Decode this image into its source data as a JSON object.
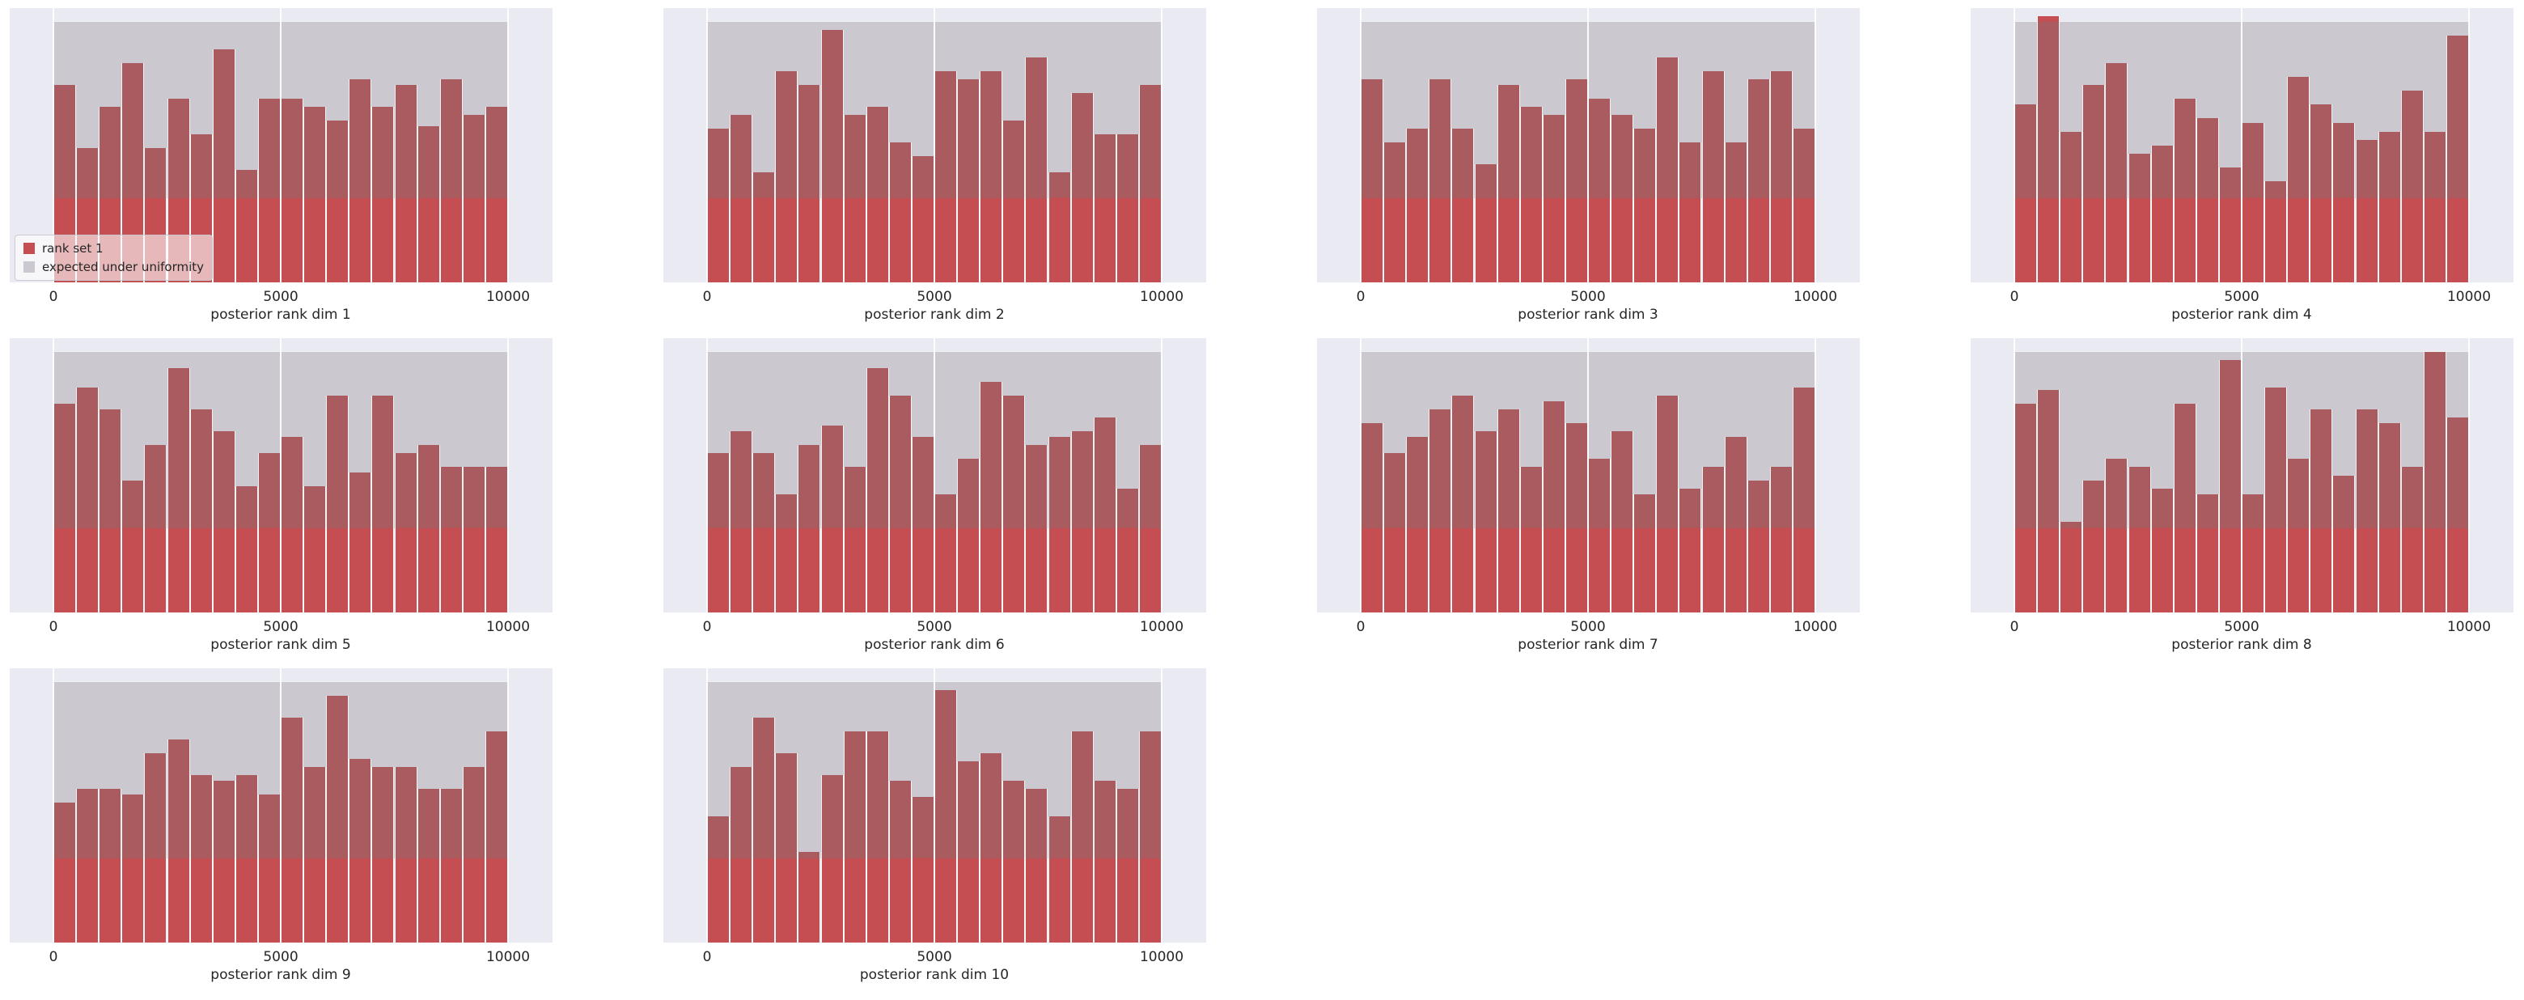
{
  "figure": {
    "description": "Grid of SBC posterior rank histograms with uniformity band",
    "grid": {
      "rows": 3,
      "cols": 4,
      "n_plots": 10
    }
  },
  "colors": {
    "bar_red": "#c44e52",
    "bar_red_muted": "#a95b5f",
    "band_gray": "#cbc9cf",
    "axes_bg": "#eaeaf2",
    "figure_bg": "#ffffff",
    "text": "#262626"
  },
  "legend": {
    "entries": [
      {
        "label": "rank set 1",
        "color": "#c44e52"
      },
      {
        "label": "expected under uniformity",
        "color": "#cbc9cf"
      }
    ]
  },
  "chart_data": {
    "type": "bar",
    "subtype": "sbc-rank-histogram-grid",
    "n_bins": 20,
    "x_range": [
      0,
      10000
    ],
    "x_ticks": [
      "0",
      "5000",
      "10000"
    ],
    "ylabel": "",
    "grid_on": true,
    "legend_position": "lower-left of first subplot",
    "series_label": "rank set 1",
    "uniformity_band": {
      "label": "expected under uniformity",
      "lower_pct": 30.7,
      "upper_pct": 95.0
    },
    "plots": [
      {
        "xlabel": "posterior rank dim 1",
        "bar_heights_pct": [
          72,
          49,
          64,
          80,
          49,
          67,
          54,
          85,
          41,
          67,
          67,
          64,
          59,
          74,
          64,
          72,
          57,
          74,
          61,
          64
        ]
      },
      {
        "xlabel": "posterior rank dim 2",
        "bar_heights_pct": [
          56,
          61,
          40,
          77,
          72,
          92,
          61,
          64,
          51,
          46,
          77,
          74,
          77,
          59,
          82,
          40,
          69,
          54,
          54,
          72
        ]
      },
      {
        "xlabel": "posterior rank dim 3",
        "bar_heights_pct": [
          74,
          51,
          56,
          74,
          56,
          43,
          72,
          64,
          61,
          74,
          67,
          61,
          56,
          82,
          51,
          77,
          51,
          74,
          77,
          56
        ]
      },
      {
        "xlabel": "posterior rank dim 4",
        "bar_heights_pct": [
          65,
          97,
          55,
          72,
          80,
          47,
          50,
          67,
          60,
          42,
          58,
          37,
          75,
          65,
          58,
          52,
          55,
          70,
          55,
          90
        ]
      },
      {
        "xlabel": "posterior rank dim 5",
        "bar_heights_pct": [
          76,
          82,
          74,
          48,
          61,
          89,
          74,
          66,
          46,
          58,
          64,
          46,
          79,
          51,
          79,
          58,
          61,
          53,
          53,
          53
        ]
      },
      {
        "xlabel": "posterior rank dim 6",
        "bar_heights_pct": [
          58,
          66,
          58,
          43,
          61,
          68,
          53,
          89,
          79,
          64,
          43,
          56,
          84,
          79,
          61,
          64,
          66,
          71,
          45,
          61
        ]
      },
      {
        "xlabel": "posterior rank dim 7",
        "bar_heights_pct": [
          69,
          58,
          64,
          74,
          79,
          66,
          74,
          53,
          77,
          69,
          56,
          66,
          43,
          79,
          45,
          53,
          64,
          48,
          53,
          82
        ]
      },
      {
        "xlabel": "posterior rank dim 8",
        "bar_heights_pct": [
          76,
          81,
          33,
          48,
          56,
          53,
          45,
          76,
          43,
          92,
          43,
          82,
          56,
          74,
          50,
          74,
          69,
          53,
          95,
          71
        ]
      },
      {
        "xlabel": "posterior rank dim 9",
        "bar_heights_pct": [
          51,
          56,
          56,
          54,
          69,
          74,
          61,
          59,
          61,
          54,
          82,
          64,
          90,
          67,
          64,
          64,
          56,
          56,
          64,
          77
        ]
      },
      {
        "xlabel": "posterior rank dim 10",
        "bar_heights_pct": [
          46,
          64,
          82,
          69,
          33,
          61,
          77,
          77,
          59,
          53,
          92,
          66,
          69,
          59,
          56,
          46,
          77,
          59,
          56,
          77
        ]
      }
    ]
  }
}
